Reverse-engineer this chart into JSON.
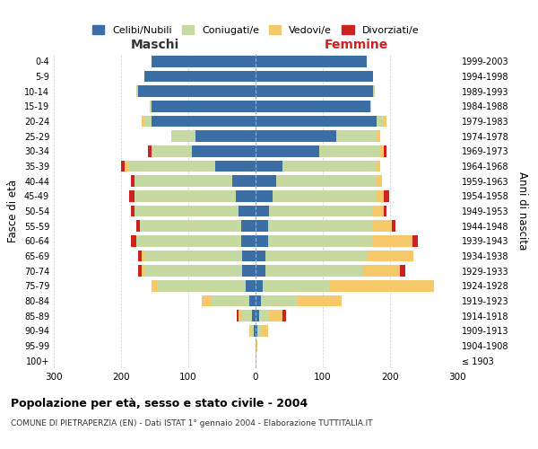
{
  "age_groups": [
    "100+",
    "95-99",
    "90-94",
    "85-89",
    "80-84",
    "75-79",
    "70-74",
    "65-69",
    "60-64",
    "55-59",
    "50-54",
    "45-49",
    "40-44",
    "35-39",
    "30-34",
    "25-29",
    "20-24",
    "15-19",
    "10-14",
    "5-9",
    "0-4"
  ],
  "birth_years": [
    "≤ 1903",
    "1904-1908",
    "1909-1913",
    "1914-1918",
    "1919-1923",
    "1924-1928",
    "1929-1933",
    "1934-1938",
    "1939-1943",
    "1944-1948",
    "1949-1953",
    "1954-1958",
    "1959-1963",
    "1964-1968",
    "1969-1973",
    "1974-1978",
    "1979-1983",
    "1984-1988",
    "1989-1993",
    "1994-1998",
    "1999-2003"
  ],
  "maschi": {
    "celibi": [
      0,
      0,
      3,
      5,
      10,
      15,
      20,
      20,
      22,
      22,
      25,
      30,
      35,
      60,
      95,
      90,
      155,
      155,
      175,
      165,
      155
    ],
    "coniugati": [
      0,
      0,
      5,
      15,
      55,
      130,
      145,
      145,
      155,
      150,
      155,
      150,
      145,
      130,
      60,
      35,
      10,
      2,
      2,
      0,
      0
    ],
    "vedovi": [
      0,
      0,
      2,
      5,
      15,
      10,
      5,
      5,
      0,
      0,
      0,
      0,
      0,
      5,
      0,
      0,
      5,
      0,
      0,
      0,
      0
    ],
    "divorziati": [
      0,
      0,
      0,
      3,
      0,
      0,
      5,
      5,
      8,
      5,
      5,
      8,
      5,
      5,
      5,
      0,
      0,
      0,
      0,
      0,
      0
    ]
  },
  "femmine": {
    "nubili": [
      0,
      0,
      3,
      5,
      8,
      10,
      15,
      15,
      18,
      18,
      20,
      25,
      30,
      40,
      95,
      120,
      180,
      170,
      175,
      175,
      165
    ],
    "coniugate": [
      0,
      0,
      5,
      15,
      55,
      100,
      145,
      150,
      155,
      155,
      155,
      155,
      150,
      140,
      90,
      60,
      10,
      2,
      2,
      0,
      0
    ],
    "vedove": [
      0,
      3,
      10,
      20,
      65,
      155,
      55,
      70,
      60,
      30,
      15,
      10,
      8,
      5,
      5,
      5,
      5,
      0,
      0,
      0,
      0
    ],
    "divorziate": [
      0,
      0,
      0,
      5,
      0,
      0,
      8,
      0,
      8,
      5,
      5,
      8,
      0,
      0,
      5,
      0,
      0,
      0,
      0,
      0,
      0
    ]
  },
  "colors": {
    "celibi": "#3a6ea5",
    "coniugati": "#c5d9a0",
    "vedovi": "#f5c96a",
    "divorziati": "#cc2222"
  },
  "title": "Popolazione per età, sesso e stato civile - 2004",
  "subtitle": "COMUNE DI PIETRAPERZIA (EN) - Dati ISTAT 1° gennaio 2004 - Elaborazione TUTTITALIA.IT",
  "xlabel_left": "Maschi",
  "xlabel_right": "Femmine",
  "ylabel_left": "Fasce di età",
  "ylabel_right": "Anni di nascita",
  "legend_labels": [
    "Celibi/Nubili",
    "Coniugati/e",
    "Vedovi/e",
    "Divorziati/e"
  ],
  "xlim": 300,
  "background_color": "#ffffff",
  "grid_color": "#cccccc"
}
